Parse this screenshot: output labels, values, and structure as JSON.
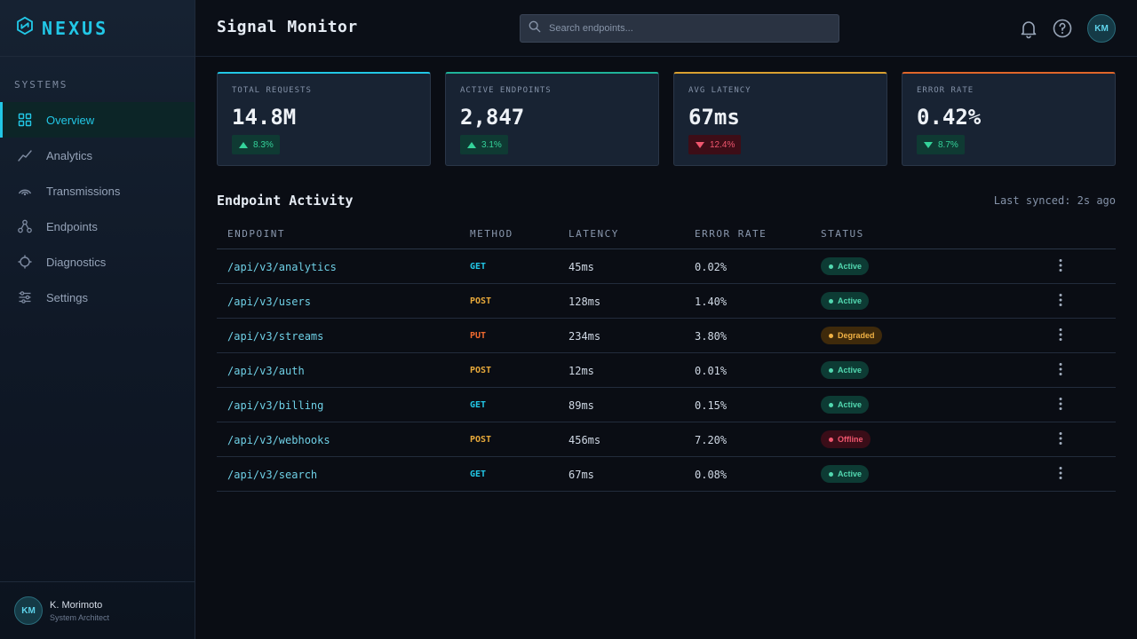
{
  "brand": {
    "name": "NEXUS"
  },
  "sidebar": {
    "section_label": "SYSTEMS",
    "items": [
      {
        "label": "Overview",
        "icon": "grid-icon",
        "active": true
      },
      {
        "label": "Analytics",
        "icon": "trend-line-icon"
      },
      {
        "label": "Transmissions",
        "icon": "signal-icon"
      },
      {
        "label": "Endpoints",
        "icon": "nodes-icon"
      },
      {
        "label": "Diagnostics",
        "icon": "crosshair-icon"
      },
      {
        "label": "Settings",
        "icon": "sliders-icon"
      }
    ],
    "user": {
      "initials": "KM",
      "name": "K. Morimoto",
      "role": "System Architect"
    }
  },
  "header": {
    "title": "Signal Monitor",
    "search_placeholder": "Search endpoints...",
    "avatar_initials": "KM"
  },
  "stats": [
    {
      "label": "TOTAL REQUESTS",
      "value": "14.8M",
      "delta": "8.3%",
      "trend": "up",
      "accent": "#22c7e6"
    },
    {
      "label": "ACTIVE ENDPOINTS",
      "value": "2,847",
      "delta": "3.1%",
      "trend": "up",
      "accent": "#1fb39a"
    },
    {
      "label": "AVG LATENCY",
      "value": "67ms",
      "delta": "12.4%",
      "trend": "down-bad",
      "accent": "#d9a030"
    },
    {
      "label": "ERROR RATE",
      "value": "0.42%",
      "delta": "8.7%",
      "trend": "down-good",
      "accent": "#e0662a"
    }
  ],
  "activity": {
    "title": "Endpoint Activity",
    "synced": "Last synced: 2s ago",
    "columns": [
      "ENDPOINT",
      "METHOD",
      "LATENCY",
      "ERROR RATE",
      "STATUS"
    ],
    "rows": [
      {
        "endpoint": "/api/v3/analytics",
        "method": "GET",
        "latency": "45ms",
        "error_rate": "0.02%",
        "status": "Active"
      },
      {
        "endpoint": "/api/v3/users",
        "method": "POST",
        "latency": "128ms",
        "error_rate": "1.40%",
        "status": "Active"
      },
      {
        "endpoint": "/api/v3/streams",
        "method": "PUT",
        "latency": "234ms",
        "error_rate": "3.80%",
        "status": "Degraded"
      },
      {
        "endpoint": "/api/v3/auth",
        "method": "POST",
        "latency": "12ms",
        "error_rate": "0.01%",
        "status": "Active"
      },
      {
        "endpoint": "/api/v3/billing",
        "method": "GET",
        "latency": "89ms",
        "error_rate": "0.15%",
        "status": "Active"
      },
      {
        "endpoint": "/api/v3/webhooks",
        "method": "POST",
        "latency": "456ms",
        "error_rate": "7.20%",
        "status": "Offline"
      },
      {
        "endpoint": "/api/v3/search",
        "method": "GET",
        "latency": "67ms",
        "error_rate": "0.08%",
        "status": "Active"
      }
    ]
  }
}
